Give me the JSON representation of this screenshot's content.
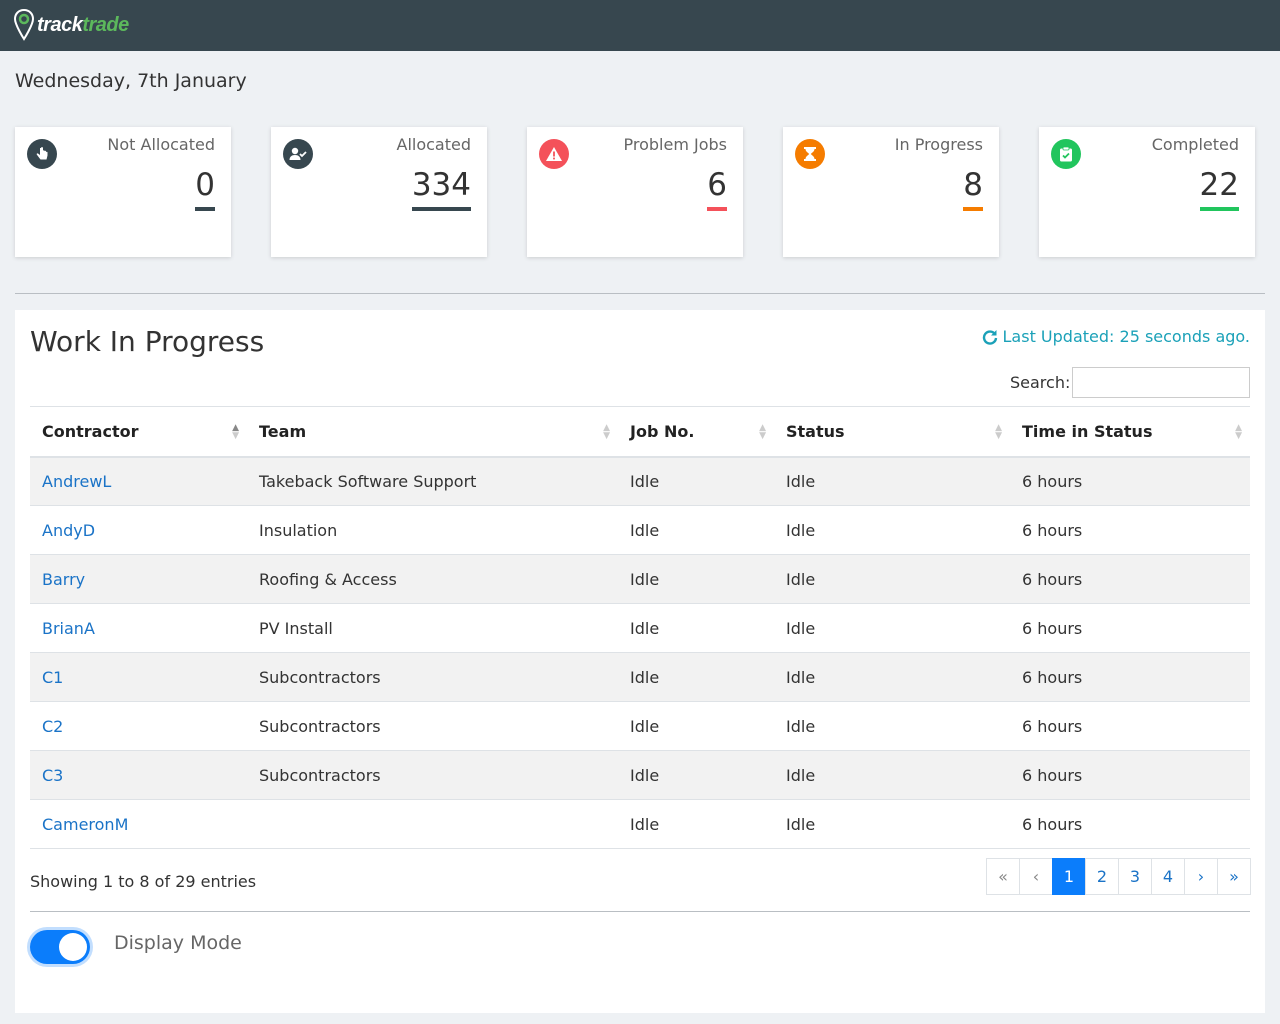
{
  "brand": {
    "track": "track",
    "trade": "trade"
  },
  "date": "Wednesday, 7th January",
  "cards": [
    {
      "label": "Not Allocated",
      "value": "0",
      "icon": "hand-pointer-icon",
      "icon_bg": "#37474f",
      "accent": "#37474f"
    },
    {
      "label": "Allocated",
      "value": "334",
      "icon": "user-check-icon",
      "icon_bg": "#37474f",
      "accent": "#37474f"
    },
    {
      "label": "Problem Jobs",
      "value": "6",
      "icon": "warning-icon",
      "icon_bg": "#f4515a",
      "accent": "#f4515a"
    },
    {
      "label": "In Progress",
      "value": "8",
      "icon": "hourglass-icon",
      "icon_bg": "#f57c00",
      "accent": "#f57c00"
    },
    {
      "label": "Completed",
      "value": "22",
      "icon": "clipboard-check-icon",
      "icon_bg": "#21c55d",
      "accent": "#21c55d"
    }
  ],
  "panel": {
    "title": "Work In Progress",
    "last_updated": "Last Updated: 25 seconds ago.",
    "search_label": "Search:",
    "search_value": ""
  },
  "table": {
    "columns": [
      "Contractor",
      "Team",
      "Job No.",
      "Status",
      "Time in Status"
    ],
    "rows": [
      [
        "AndrewL",
        "Takeback Software Support",
        "Idle",
        "Idle",
        "6 hours"
      ],
      [
        "AndyD",
        "Insulation",
        "Idle",
        "Idle",
        "6 hours"
      ],
      [
        "Barry",
        "Roofing & Access",
        "Idle",
        "Idle",
        "6 hours"
      ],
      [
        "BrianA",
        "PV Install",
        "Idle",
        "Idle",
        "6 hours"
      ],
      [
        "C1",
        "Subcontractors",
        "Idle",
        "Idle",
        "6 hours"
      ],
      [
        "C2",
        "Subcontractors",
        "Idle",
        "Idle",
        "6 hours"
      ],
      [
        "C3",
        "Subcontractors",
        "Idle",
        "Idle",
        "6 hours"
      ],
      [
        "CameronM",
        "",
        "Idle",
        "Idle",
        "6 hours"
      ]
    ]
  },
  "footer": {
    "showing": "Showing 1 to 8 of 29 entries",
    "pagination": [
      "«",
      "‹",
      "1",
      "2",
      "3",
      "4",
      "›",
      "»"
    ],
    "active_page": "1",
    "display_mode_label": "Display Mode",
    "display_mode_on": true
  },
  "colors": {
    "accent": "#0b7dfb",
    "link": "#1a73c7",
    "refresh": "#1ba1b8",
    "topbar": "#37474f"
  }
}
